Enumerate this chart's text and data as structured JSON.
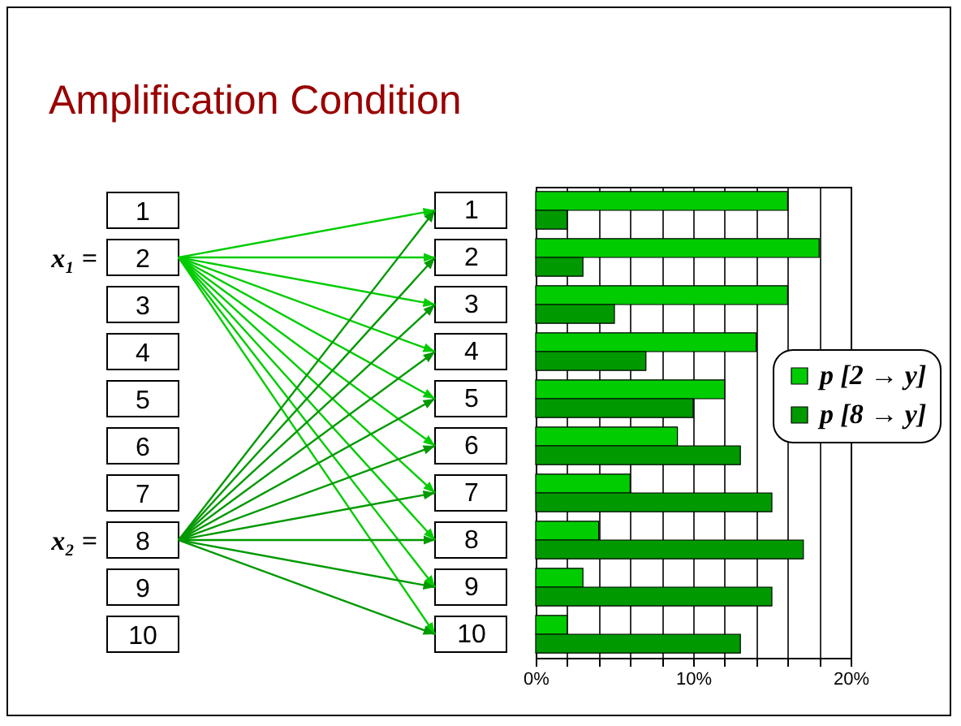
{
  "chart_data": {
    "type": "bar",
    "orientation": "horizontal",
    "title": "Amplification Condition",
    "annotations": [
      "x₁ =",
      "x₂ ="
    ],
    "categories": [
      "1",
      "2",
      "3",
      "4",
      "5",
      "6",
      "7",
      "8",
      "9",
      "10"
    ],
    "series": [
      {
        "name": "p [2 → y]",
        "color": "#00cc00",
        "values": [
          16,
          18,
          16,
          14,
          12,
          9,
          6,
          4,
          3,
          2
        ]
      },
      {
        "name": "p [8 → y]",
        "color": "#009900",
        "values": [
          2,
          3,
          5,
          7,
          10,
          13,
          15,
          17,
          15,
          13
        ]
      }
    ],
    "xlim": [
      0,
      20
    ],
    "xticks": [
      {
        "value": 0,
        "label": "0%"
      },
      {
        "value": 2,
        "label": null
      },
      {
        "value": 4,
        "label": null
      },
      {
        "value": 6,
        "label": null
      },
      {
        "value": 8,
        "label": null
      },
      {
        "value": 10,
        "label": "10%"
      },
      {
        "value": 12,
        "label": null
      },
      {
        "value": 14,
        "label": null
      },
      {
        "value": 16,
        "label": null
      },
      {
        "value": 18,
        "label": null
      },
      {
        "value": 20,
        "label": "20%"
      }
    ],
    "grid": "x",
    "legend": "right"
  }
}
